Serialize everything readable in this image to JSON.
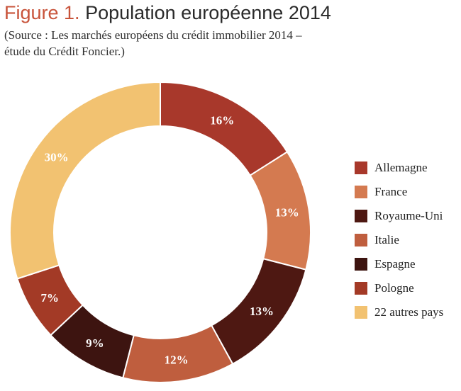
{
  "header": {
    "figure_label": "Figure 1.",
    "title": "Population européenne 2014",
    "source_line1": "(Source : Les marchés européens du crédit immobilier 2014 –",
    "source_line2": "étude du Crédit Foncier.)"
  },
  "chart_data": {
    "type": "pie",
    "style": "donut",
    "title": "Population européenne 2014",
    "legend_position": "right",
    "slices": [
      {
        "label": "Allemagne",
        "value": 16,
        "display": "16%",
        "color": "#a8382b"
      },
      {
        "label": "France",
        "value": 13,
        "display": "13%",
        "color": "#d47a50"
      },
      {
        "label": "Royaume-Uni",
        "value": 13,
        "display": "13%",
        "color": "#4e1812"
      },
      {
        "label": "Italie",
        "value": 12,
        "display": "12%",
        "color": "#bf5e3e"
      },
      {
        "label": "Espagne",
        "value": 9,
        "display": "9%",
        "color": "#3d1410"
      },
      {
        "label": "Pologne",
        "value": 7,
        "display": "7%",
        "color": "#a33a26"
      },
      {
        "label": "22 autres pays",
        "value": 30,
        "display": "30%",
        "color": "#f2c271"
      }
    ]
  }
}
